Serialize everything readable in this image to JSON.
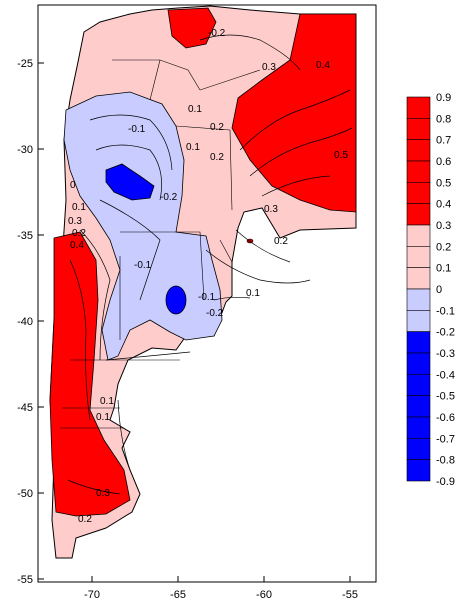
{
  "map": {
    "x_axis_ticks": [
      "-70",
      "-65",
      "-60",
      "-55"
    ],
    "y_axis_ticks": [
      "-25",
      "-30",
      "-35",
      "-40",
      "-45",
      "-50",
      "-55"
    ],
    "contour_labels": [
      "-0.1",
      "-0.2",
      "0.1",
      "0.2",
      "0.3",
      "0.4",
      "0.5",
      "0",
      "-0.2",
      "-0.1",
      "0.2",
      "0.1",
      "0.3",
      "0.1",
      "0.3",
      "0.2",
      "0.4",
      "0.3",
      "0.2",
      "0.1",
      "0.1",
      "0.2",
      "-0.2",
      "-0.1",
      "0.1"
    ],
    "colors": {
      "strong_positive": "#ff0000",
      "weak_positive": "#ffcccc",
      "weak_negative": "#c8ccff",
      "strong_negative": "#0000ff",
      "outline": "#000000"
    }
  },
  "legend": {
    "levels": [
      {
        "label": "0.9",
        "color": "#ff0000"
      },
      {
        "label": "0.8",
        "color": "#ff0000"
      },
      {
        "label": "0.7",
        "color": "#ff0000"
      },
      {
        "label": "0.6",
        "color": "#ff0000"
      },
      {
        "label": "0.5",
        "color": "#ff0000"
      },
      {
        "label": "0.4",
        "color": "#ff0000"
      },
      {
        "label": "0.3",
        "color": "#ffcccc"
      },
      {
        "label": "0.2",
        "color": "#ffcccc"
      },
      {
        "label": "0.1",
        "color": "#ffcccc"
      },
      {
        "label": "0",
        "color": "#c8ccff"
      },
      {
        "label": "-0.1",
        "color": "#c8ccff"
      },
      {
        "label": "-0.2",
        "color": "#c8ccff"
      },
      {
        "label": "-0.3",
        "color": "#0000ff"
      },
      {
        "label": "-0.4",
        "color": "#0000ff"
      },
      {
        "label": "-0.5",
        "color": "#0000ff"
      },
      {
        "label": "-0.6",
        "color": "#0000ff"
      },
      {
        "label": "-0.7",
        "color": "#0000ff"
      },
      {
        "label": "-0.8",
        "color": "#0000ff"
      },
      {
        "label": "-0.9",
        "color": "#0000ff"
      }
    ]
  }
}
